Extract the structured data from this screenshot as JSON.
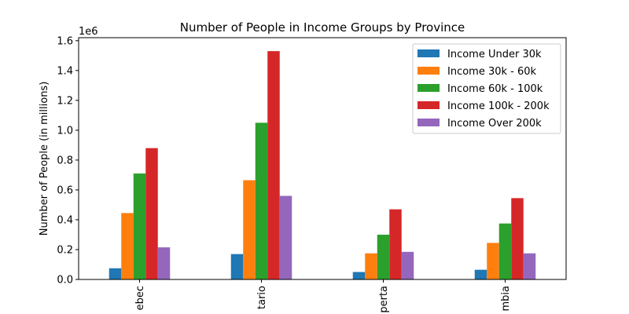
{
  "chart_data": {
    "type": "bar",
    "title": "Number of People in Income Groups by Province",
    "xlabel": "",
    "ylabel": "Number of People (in millions)",
    "y_offset_label": "1e6",
    "ylim": [
      0,
      1.62
    ],
    "yticks": [
      0.0,
      0.2,
      0.4,
      0.6,
      0.8,
      1.0,
      1.2,
      1.4,
      1.6
    ],
    "ytick_labels": [
      "0.0",
      "0.2",
      "0.4",
      "0.6",
      "0.8",
      "1.0",
      "1.2",
      "1.4",
      "1.6"
    ],
    "categories": [
      "Quebec",
      "Ontario",
      "Alberta",
      "British Columbia"
    ],
    "category_labels_visible": [
      "ebec",
      "tario",
      "perta",
      "mbia"
    ],
    "grid": false,
    "legend_position": "top-right",
    "series": [
      {
        "name": "Income Under 30k",
        "color": "#1f77b4",
        "values": [
          0.075,
          0.17,
          0.05,
          0.065
        ]
      },
      {
        "name": "Income 30k - 60k",
        "color": "#ff7f0e",
        "values": [
          0.445,
          0.665,
          0.175,
          0.245
        ]
      },
      {
        "name": "Income 60k - 100k",
        "color": "#2ca02c",
        "values": [
          0.71,
          1.05,
          0.3,
          0.375
        ]
      },
      {
        "name": "Income 100k - 200k",
        "color": "#d62728",
        "values": [
          0.88,
          1.53,
          0.47,
          0.545
        ]
      },
      {
        "name": "Income Over 200k",
        "color": "#9467bd",
        "values": [
          0.215,
          0.56,
          0.185,
          0.175
        ]
      }
    ]
  }
}
